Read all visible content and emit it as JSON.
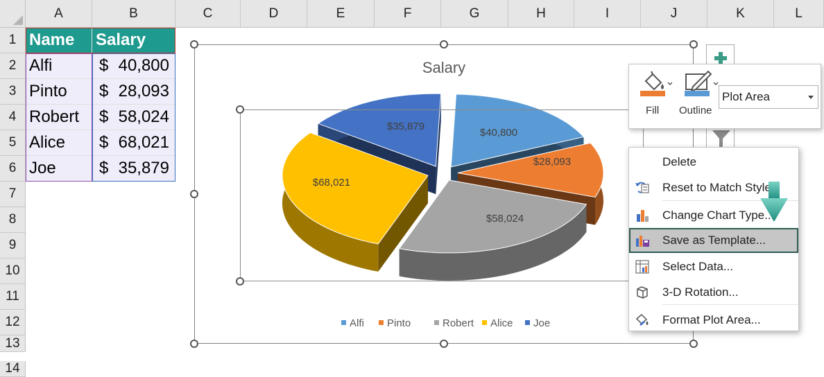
{
  "columns": [
    "A",
    "B",
    "C",
    "D",
    "E",
    "F",
    "G",
    "H",
    "I",
    "J",
    "K",
    "L"
  ],
  "rows": [
    "1",
    "2",
    "3",
    "4",
    "5",
    "6",
    "7",
    "8",
    "9",
    "10",
    "11",
    "12",
    "13",
    "14"
  ],
  "table": {
    "headers": [
      "Name",
      "Salary"
    ],
    "rows": [
      {
        "name": "Alfi",
        "cur": "$",
        "amount": "40,800"
      },
      {
        "name": "Pinto",
        "cur": "$",
        "amount": "28,093"
      },
      {
        "name": "Robert",
        "cur": "$",
        "amount": "58,024"
      },
      {
        "name": "Alice",
        "cur": "$",
        "amount": "68,021"
      },
      {
        "name": "Joe",
        "cur": "$",
        "amount": "35,879"
      }
    ]
  },
  "chart_data": {
    "type": "pie",
    "style": "3-D exploded pie",
    "title": "Salary",
    "categories": [
      "Alfi",
      "Pinto",
      "Robert",
      "Alice",
      "Joe"
    ],
    "values": [
      40800,
      28093,
      58024,
      68021,
      35879
    ],
    "data_labels": [
      "$40,800",
      "$28,093",
      "$58,024",
      "$68,021",
      "$35,879"
    ],
    "colors": [
      "#5b9bd5",
      "#ed7d31",
      "#a5a5a5",
      "#ffc000",
      "#4472c4"
    ],
    "legend_position": "bottom"
  },
  "format_toolbar": {
    "fill_label": "Fill",
    "outline_label": "Outline",
    "element_selector": "Plot Area"
  },
  "context_menu": {
    "items": [
      {
        "label": "Delete",
        "icon": "none"
      },
      {
        "label": "Reset to Match Style",
        "icon": "reset-style-icon"
      },
      {
        "label": "Change Chart Type...",
        "icon": "chart-type-icon"
      },
      {
        "label": "Save as Template...",
        "icon": "save-template-icon",
        "selected": true
      },
      {
        "label": "Select Data...",
        "icon": "select-data-icon"
      },
      {
        "label": "3-D Rotation...",
        "icon": "cube-icon"
      },
      {
        "label": "Format Plot Area...",
        "icon": "format-paint-icon"
      }
    ]
  }
}
